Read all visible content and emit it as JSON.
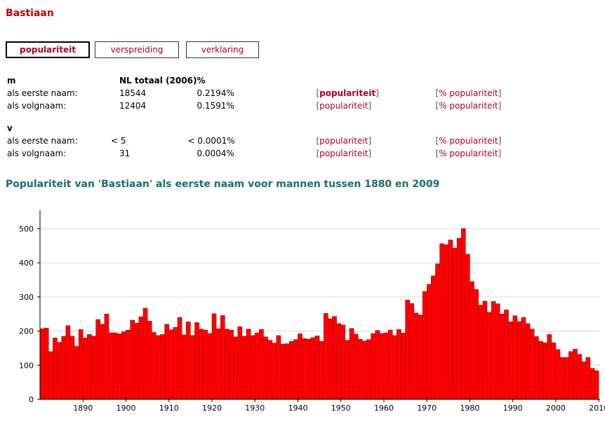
{
  "page": {
    "title": "Bastiaan"
  },
  "tabs": [
    {
      "label": "populariteit",
      "active": true
    },
    {
      "label": "verspreiding",
      "active": false
    },
    {
      "label": "verklaring",
      "active": false
    }
  ],
  "stats": {
    "header": {
      "gender": "m",
      "total_label": "NL totaal (2006)",
      "pct_label": "%"
    },
    "m_rows": [
      {
        "label": "als eerste naam:",
        "count": "18544",
        "pct": "0.2194%",
        "link1": "populariteit",
        "link2": "% populariteit"
      },
      {
        "label": "als volgnaam:",
        "count": "12404",
        "pct": "0.1591%",
        "link1": "populariteit",
        "link2": "% populariteit"
      }
    ],
    "v_header": "v",
    "v_rows": [
      {
        "label": "als eerste naam:",
        "count": "< 5",
        "pct": "< 0.0001%",
        "link1": "populariteit",
        "link2": "% populariteit"
      },
      {
        "label": "als volgnaam:",
        "count": "31",
        "pct": "0.0004%",
        "link1": "populariteit",
        "link2": "% populariteit"
      }
    ],
    "bracket_open": "[",
    "bracket_close": "]"
  },
  "chart_title": "Populariteit van 'Bastiaan' als eerste naam voor mannen tussen 1880 en 2009",
  "chart_data": {
    "type": "bar",
    "title": "Populariteit van 'Bastiaan' als eerste naam voor mannen tussen 1880 en 2009",
    "xlabel": "",
    "ylabel": "",
    "x_start": 1880,
    "x_end": 2009,
    "ylim": [
      0,
      550
    ],
    "yticks": [
      0,
      100,
      200,
      300,
      400,
      500
    ],
    "xticks": [
      1890,
      1900,
      1910,
      1920,
      1930,
      1940,
      1950,
      1960,
      1970,
      1980,
      1990,
      2000,
      2010
    ],
    "grid": true,
    "bar_color": "#ff0000",
    "bar_edge": "#990000",
    "values": [
      207,
      209,
      140,
      180,
      167,
      185,
      216,
      185,
      155,
      205,
      180,
      190,
      185,
      234,
      220,
      250,
      195,
      195,
      192,
      198,
      203,
      232,
      223,
      242,
      267,
      229,
      196,
      187,
      190,
      220,
      204,
      211,
      240,
      189,
      227,
      187,
      225,
      206,
      203,
      193,
      251,
      207,
      246,
      206,
      203,
      183,
      213,
      185,
      206,
      187,
      195,
      205,
      183,
      173,
      165,
      187,
      162,
      163,
      170,
      175,
      192,
      178,
      176,
      181,
      186,
      170,
      252,
      236,
      243,
      222,
      218,
      173,
      208,
      191,
      176,
      171,
      175,
      193,
      202,
      193,
      195,
      203,
      187,
      205,
      194,
      291,
      281,
      253,
      247,
      316,
      337,
      362,
      397,
      456,
      453,
      467,
      443,
      472,
      500,
      425,
      345,
      322,
      276,
      288,
      255,
      287,
      280,
      250,
      262,
      227,
      245,
      228,
      240,
      222,
      206,
      184,
      170,
      166,
      190,
      166,
      146,
      123,
      123,
      140,
      147,
      132,
      110,
      123,
      91,
      84
    ]
  }
}
